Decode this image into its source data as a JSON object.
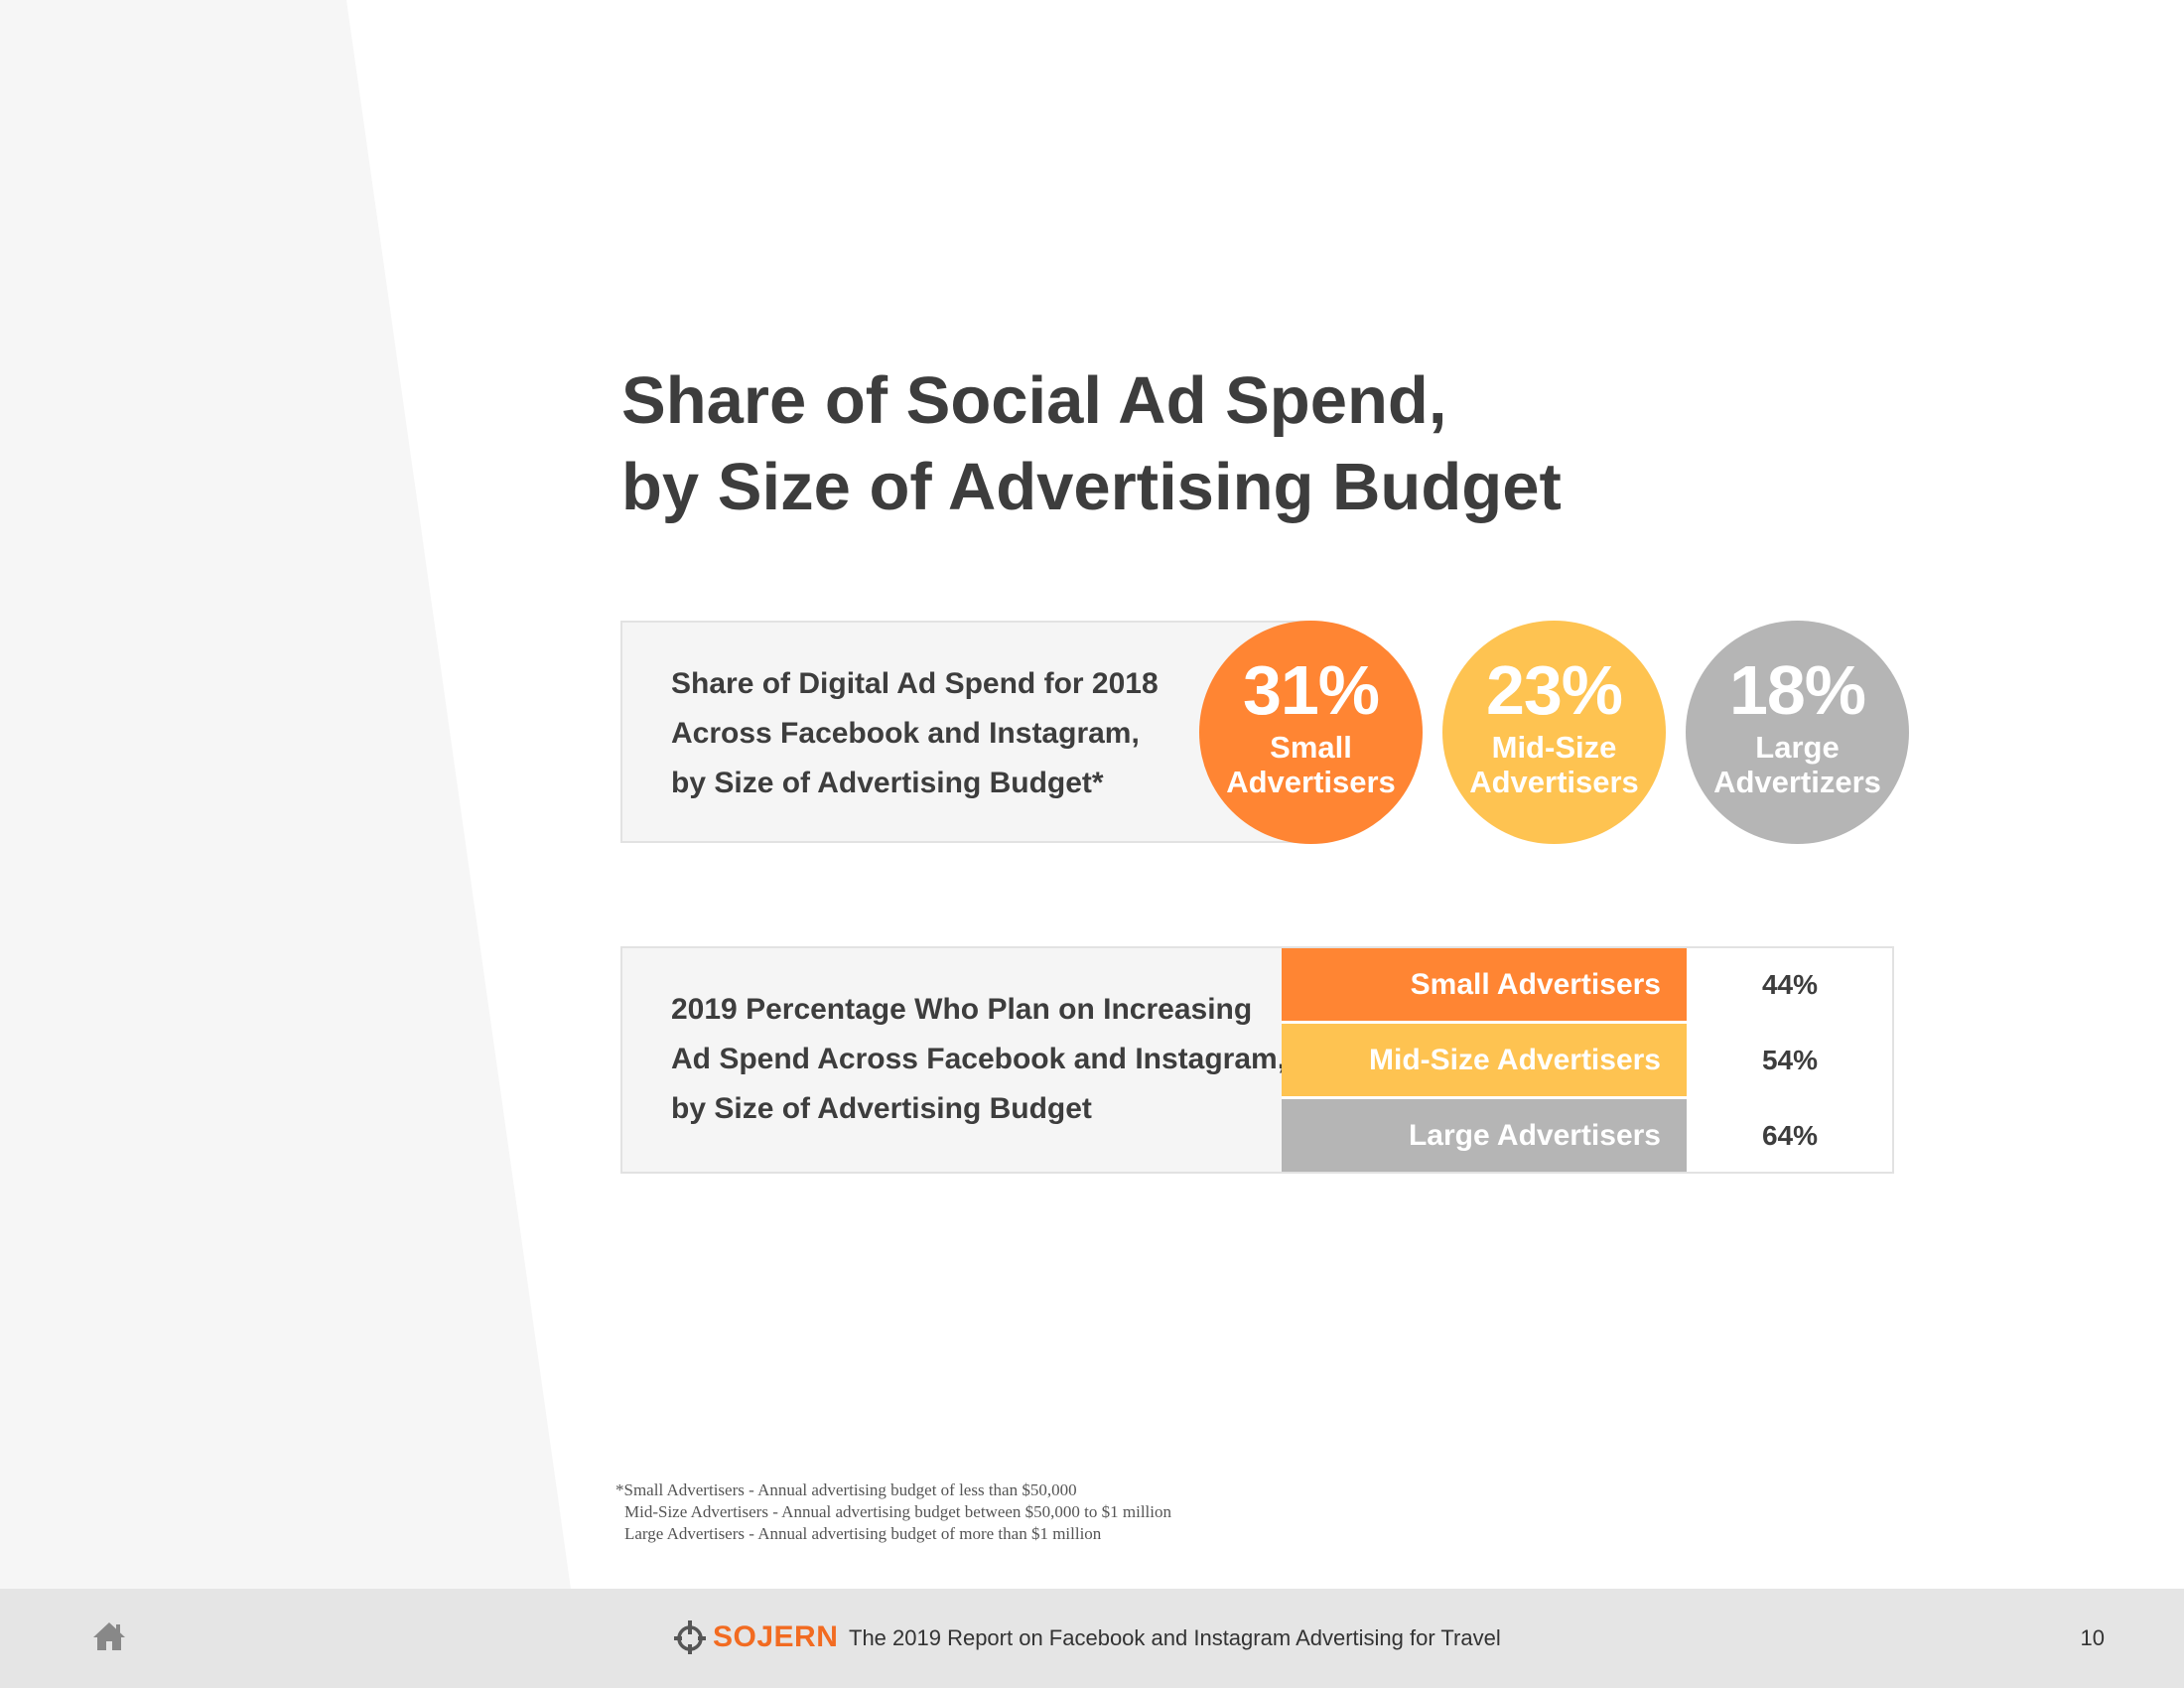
{
  "title": {
    "line1": "Share of Social Ad Spend,",
    "line2": "by Size of Advertising Budget"
  },
  "panel1": {
    "lines": [
      "Share of Digital Ad Spend for 2018",
      "Across Facebook and Instagram,",
      "by Size of Advertising Budget*"
    ],
    "circles": [
      {
        "value": "31%",
        "label1": "Small",
        "label2": "Advertisers",
        "color": "#ff8533"
      },
      {
        "value": "23%",
        "label1": "Mid-Size",
        "label2": "Advertisers",
        "color": "#fec351"
      },
      {
        "value": "18%",
        "label1": "Large",
        "label2": "Advertizers",
        "color": "#b5b5b5"
      }
    ]
  },
  "panel2": {
    "lines": [
      "2019 Percentage Who Plan on Increasing",
      "Ad Spend Across Facebook and Instagram,",
      "by Size of Advertising Budget"
    ],
    "rows": [
      {
        "label": "Small Advertisers",
        "value": "44%",
        "color": "#ff8533"
      },
      {
        "label": "Mid-Size Advertisers",
        "value": "54%",
        "color": "#fec351"
      },
      {
        "label": "Large Advertisers",
        "value": "64%",
        "color": "#b5b5b5"
      }
    ]
  },
  "footnote": {
    "line1": "*Small Advertisers - Annual advertising budget of less than $50,000",
    "line2": "Mid-Size Advertisers - Annual advertising budget between $50,000 to $1 million",
    "line3": "Large Advertisers - Annual advertising budget of more than $1 million"
  },
  "footer": {
    "home_icon": "home-icon",
    "logo_text": "SOJERN",
    "logo_icon": "sojern-logo-icon",
    "report_title": "The 2019 Report on Facebook and Instagram Advertising for Travel",
    "page_number": "10"
  },
  "colors": {
    "accent_orange": "#ff8533",
    "accent_yellow": "#fec351",
    "accent_gray": "#b5b5b5",
    "brand": "#f26b21"
  }
}
